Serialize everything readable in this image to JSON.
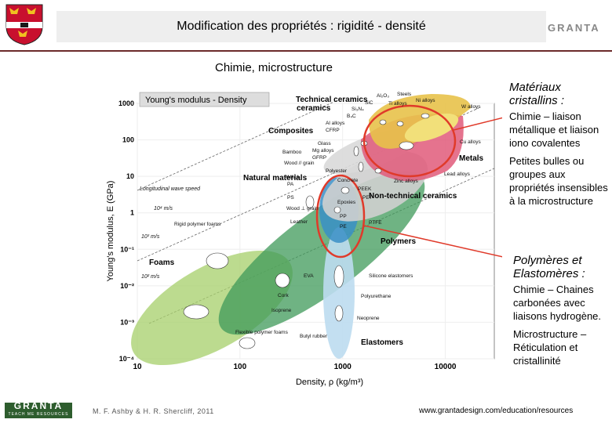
{
  "header": {
    "title": "Modification des propriétés : rigidité - densité",
    "logo_text": "GRANTA"
  },
  "subtitle": "Chimie, microstructure",
  "sidebar": {
    "block1_heading": "Matériaux cristallins :",
    "block1_p1": "Chimie – liaison métallique et liaison iono covalentes",
    "block1_p2": "Petites bulles ou groupes aux propriétés insensibles à la microstructure",
    "block2_heading": "Polymères et Elastomères :",
    "block2_p1": "Chimie – Chaines carbonées avec liaisons hydrogène.",
    "block2_p2": "Microstructure – Réticulation et cristallinité"
  },
  "footer": {
    "logo_text": "GRANTA",
    "logo_sub": "TEACH ME RESOURCES",
    "credit": "M. F. Ashby & H. R. Shercliff, 2011",
    "url": "www.grantadesign.com/education/resources"
  },
  "chart_data": {
    "type": "bubble-map",
    "title": "Young's modulus - Density",
    "xlabel": "Density, ρ  (kg/m³)",
    "ylabel": "Young's modulus, E (GPa)",
    "xscale": "log",
    "yscale": "log",
    "xlim": [
      10,
      30000
    ],
    "ylim": [
      0.0001,
      1000
    ],
    "x_ticks": [
      "10",
      "100",
      "1000",
      "10000"
    ],
    "y_ticks": [
      "10⁻⁴",
      "10⁻³",
      "10⁻²",
      "10⁻¹",
      "1",
      "10",
      "100",
      "1000"
    ],
    "families": [
      {
        "name": "Technical ceramics",
        "color": "#e8c24a"
      },
      {
        "name": "Composites",
        "color": "#cfcfcf"
      },
      {
        "name": "Metals",
        "color": "#e05a7a"
      },
      {
        "name": "Natural materials",
        "color": "#3f9a5a"
      },
      {
        "name": "Non-technical ceramics",
        "color": "#c9c9c9"
      },
      {
        "name": "Polymers",
        "color": "#3a8fc7"
      },
      {
        "name": "Foams",
        "color": "#a6cf6a"
      },
      {
        "name": "Elastomers",
        "color": "#bcdcf0"
      }
    ],
    "family_labels": [
      "Technical ceramics",
      "Composites",
      "Metals",
      "Natural materials",
      "Non-technical ceramics",
      "Polymers",
      "Foams",
      "Elastomers"
    ],
    "material_labels": [
      "Al₂O₃",
      "Steels",
      "Ni alloys",
      "SiC",
      "Ti alloys",
      "Si₃N₄",
      "B₄C",
      "Al alloys",
      "CFRP",
      "W alloys",
      "Mg alloys",
      "Glass",
      "Cu alloys",
      "GFRP",
      "Bamboo",
      "Wood // grain",
      "PMMA",
      "PA",
      "Polyester",
      "Concrete",
      "Zinc alloys",
      "Lead alloys",
      "PEEK",
      "PET",
      "Epoxies",
      "PS",
      "PP",
      "PE",
      "Wood ⊥ grain",
      "PTFE",
      "Leather",
      "Rigid polymer foams",
      "EVA",
      "Silicone elastomers",
      "Polyurethane",
      "Cork",
      "Isoprene",
      "Neoprene",
      "Flexible polymer foams",
      "Butyl rubber"
    ],
    "annotations": [
      "Longitudinal wave speed",
      "10⁴ m/s",
      "10³ m/s",
      "10² m/s"
    ]
  }
}
